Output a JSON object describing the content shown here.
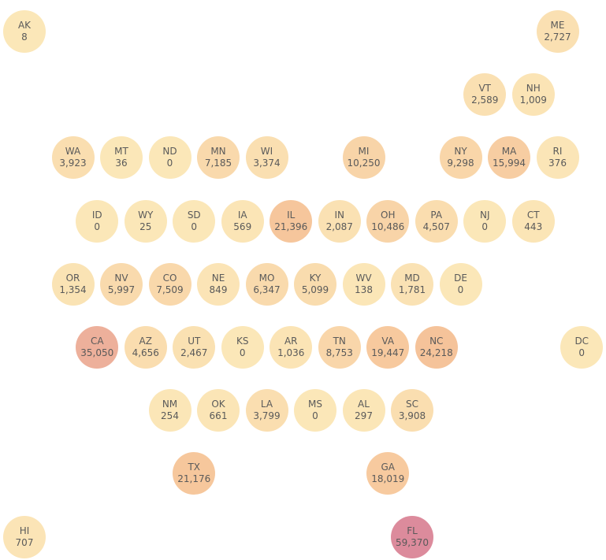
{
  "chart_data": {
    "type": "tile-map",
    "color_scale": {
      "min_color": "#fbe7b8",
      "mid_color": "#f6c49a",
      "max_color": "#dc8b9c"
    },
    "tiles": [
      {
        "state": "AK",
        "value": "8",
        "num": 8,
        "col": 0,
        "row": 0
      },
      {
        "state": "ME",
        "value": "2,727",
        "num": 2727,
        "col": 11,
        "row": 0
      },
      {
        "state": "VT",
        "value": "2,589",
        "num": 2589,
        "col": 9.5,
        "row": 1
      },
      {
        "state": "NH",
        "value": "1,009",
        "num": 1009,
        "col": 10.5,
        "row": 1
      },
      {
        "state": "WA",
        "value": "3,923",
        "num": 3923,
        "col": 1,
        "row": 2
      },
      {
        "state": "MT",
        "value": "36",
        "num": 36,
        "col": 2,
        "row": 2
      },
      {
        "state": "ND",
        "value": "0",
        "num": 0,
        "col": 3,
        "row": 2
      },
      {
        "state": "MN",
        "value": "7,185",
        "num": 7185,
        "col": 4,
        "row": 2
      },
      {
        "state": "WI",
        "value": "3,374",
        "num": 3374,
        "col": 5,
        "row": 2
      },
      {
        "state": "MI",
        "value": "10,250",
        "num": 10250,
        "col": 7,
        "row": 2
      },
      {
        "state": "NY",
        "value": "9,298",
        "num": 9298,
        "col": 9,
        "row": 2
      },
      {
        "state": "MA",
        "value": "15,994",
        "num": 15994,
        "col": 10,
        "row": 2
      },
      {
        "state": "RI",
        "value": "376",
        "num": 376,
        "col": 11,
        "row": 2
      },
      {
        "state": "ID",
        "value": "0",
        "num": 0,
        "col": 1.5,
        "row": 3
      },
      {
        "state": "WY",
        "value": "25",
        "num": 25,
        "col": 2.5,
        "row": 3
      },
      {
        "state": "SD",
        "value": "0",
        "num": 0,
        "col": 3.5,
        "row": 3
      },
      {
        "state": "IA",
        "value": "569",
        "num": 569,
        "col": 4.5,
        "row": 3
      },
      {
        "state": "IL",
        "value": "21,396",
        "num": 21396,
        "col": 5.5,
        "row": 3
      },
      {
        "state": "IN",
        "value": "2,087",
        "num": 2087,
        "col": 6.5,
        "row": 3
      },
      {
        "state": "OH",
        "value": "10,486",
        "num": 10486,
        "col": 7.5,
        "row": 3
      },
      {
        "state": "PA",
        "value": "4,507",
        "num": 4507,
        "col": 8.5,
        "row": 3
      },
      {
        "state": "NJ",
        "value": "0",
        "num": 0,
        "col": 9.5,
        "row": 3
      },
      {
        "state": "CT",
        "value": "443",
        "num": 443,
        "col": 10.5,
        "row": 3
      },
      {
        "state": "OR",
        "value": "1,354",
        "num": 1354,
        "col": 1,
        "row": 4
      },
      {
        "state": "NV",
        "value": "5,997",
        "num": 5997,
        "col": 2,
        "row": 4
      },
      {
        "state": "CO",
        "value": "7,509",
        "num": 7509,
        "col": 3,
        "row": 4
      },
      {
        "state": "NE",
        "value": "849",
        "num": 849,
        "col": 4,
        "row": 4
      },
      {
        "state": "MO",
        "value": "6,347",
        "num": 6347,
        "col": 5,
        "row": 4
      },
      {
        "state": "KY",
        "value": "5,099",
        "num": 5099,
        "col": 6,
        "row": 4
      },
      {
        "state": "WV",
        "value": "138",
        "num": 138,
        "col": 7,
        "row": 4
      },
      {
        "state": "MD",
        "value": "1,781",
        "num": 1781,
        "col": 8,
        "row": 4
      },
      {
        "state": "DE",
        "value": "0",
        "num": 0,
        "col": 9,
        "row": 4
      },
      {
        "state": "CA",
        "value": "35,050",
        "num": 35050,
        "col": 1.5,
        "row": 5
      },
      {
        "state": "AZ",
        "value": "4,656",
        "num": 4656,
        "col": 2.5,
        "row": 5
      },
      {
        "state": "UT",
        "value": "2,467",
        "num": 2467,
        "col": 3.5,
        "row": 5
      },
      {
        "state": "KS",
        "value": "0",
        "num": 0,
        "col": 4.5,
        "row": 5
      },
      {
        "state": "AR",
        "value": "1,036",
        "num": 1036,
        "col": 5.5,
        "row": 5
      },
      {
        "state": "TN",
        "value": "8,753",
        "num": 8753,
        "col": 6.5,
        "row": 5
      },
      {
        "state": "VA",
        "value": "19,447",
        "num": 19447,
        "col": 7.5,
        "row": 5
      },
      {
        "state": "NC",
        "value": "24,218",
        "num": 24218,
        "col": 8.5,
        "row": 5
      },
      {
        "state": "DC",
        "value": "0",
        "num": 0,
        "col": 11.5,
        "row": 5
      },
      {
        "state": "NM",
        "value": "254",
        "num": 254,
        "col": 3,
        "row": 6
      },
      {
        "state": "OK",
        "value": "661",
        "num": 661,
        "col": 4,
        "row": 6
      },
      {
        "state": "LA",
        "value": "3,799",
        "num": 3799,
        "col": 5,
        "row": 6
      },
      {
        "state": "MS",
        "value": "0",
        "num": 0,
        "col": 6,
        "row": 6
      },
      {
        "state": "AL",
        "value": "297",
        "num": 297,
        "col": 7,
        "row": 6
      },
      {
        "state": "SC",
        "value": "3,908",
        "num": 3908,
        "col": 8,
        "row": 6
      },
      {
        "state": "TX",
        "value": "21,176",
        "num": 21176,
        "col": 3.5,
        "row": 7
      },
      {
        "state": "GA",
        "value": "18,019",
        "num": 18019,
        "col": 7.5,
        "row": 7
      },
      {
        "state": "HI",
        "value": "707",
        "num": 707,
        "col": 0,
        "row": 8
      },
      {
        "state": "FL",
        "value": "59,370",
        "num": 59370,
        "col": 8,
        "row": 8
      }
    ]
  }
}
